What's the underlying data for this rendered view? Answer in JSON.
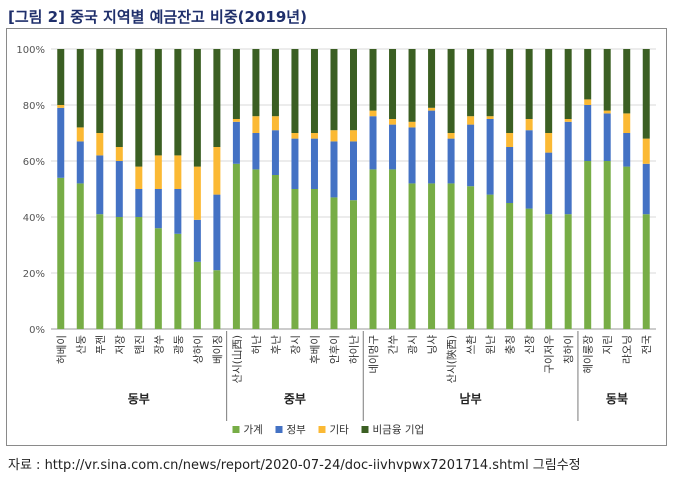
{
  "figure": {
    "title": "[그림 2] 중국 지역별 예금잔고 비중(2019년)",
    "source": "자료 : http://vr.sina.com.cn/news/report/2020-07-24/doc-iivhvpwx7201714.shtml  그림수정"
  },
  "chart_data": {
    "type": "bar",
    "stacked": true,
    "ylim": [
      0,
      100
    ],
    "y_ticks": [
      "0%",
      "20%",
      "40%",
      "60%",
      "80%",
      "100%"
    ],
    "grid": true,
    "legend_position": "bottom",
    "categories": [
      "허베이",
      "산둥",
      "푸젠",
      "저장",
      "톈진",
      "장쑤",
      "광둥",
      "상하이",
      "베이징",
      "산시(山西)",
      "허난",
      "후난",
      "장시",
      "후베이",
      "안후이",
      "하이난",
      "네이멍구",
      "간쑤",
      "광시",
      "닝샤",
      "산시(陝西)",
      "쓰촨",
      "윈난",
      "충칭",
      "신장",
      "구이저우",
      "칭하이",
      "헤이룽장",
      "지린",
      "랴오닝",
      "전국"
    ],
    "groups": [
      {
        "label": "동부",
        "start": 0,
        "end": 8
      },
      {
        "label": "중부",
        "start": 9,
        "end": 15
      },
      {
        "label": "남부",
        "start": 16,
        "end": 26
      },
      {
        "label": "동북",
        "start": 27,
        "end": 30
      }
    ],
    "series": [
      {
        "name": "가계",
        "color": "#77ad46",
        "values": [
          54,
          52,
          41,
          40,
          40,
          36,
          34,
          24,
          21,
          59,
          57,
          55,
          50,
          50,
          47,
          46,
          57,
          57,
          52,
          52,
          52,
          51,
          48,
          45,
          43,
          41,
          41,
          60,
          60,
          58,
          41
        ]
      },
      {
        "name": "정부",
        "color": "#4472c4",
        "values": [
          25,
          15,
          21,
          20,
          10,
          14,
          16,
          15,
          27,
          15,
          13,
          16,
          18,
          18,
          20,
          21,
          19,
          16,
          20,
          26,
          16,
          22,
          27,
          20,
          28,
          22,
          33,
          20,
          17,
          12,
          18
        ]
      },
      {
        "name": "기타",
        "color": "#fbb934",
        "values": [
          1,
          5,
          8,
          5,
          8,
          12,
          12,
          19,
          17,
          1,
          6,
          5,
          2,
          2,
          4,
          4,
          2,
          2,
          2,
          1,
          2,
          3,
          1,
          5,
          4,
          7,
          1,
          2,
          1,
          7,
          9
        ]
      },
      {
        "name": "비금융 기업",
        "color": "#3b5f23",
        "values": [
          20,
          28,
          30,
          35,
          42,
          38,
          38,
          42,
          35,
          25,
          24,
          24,
          30,
          30,
          29,
          29,
          22,
          25,
          26,
          21,
          30,
          24,
          24,
          30,
          25,
          30,
          25,
          18,
          22,
          23,
          32
        ]
      }
    ]
  }
}
